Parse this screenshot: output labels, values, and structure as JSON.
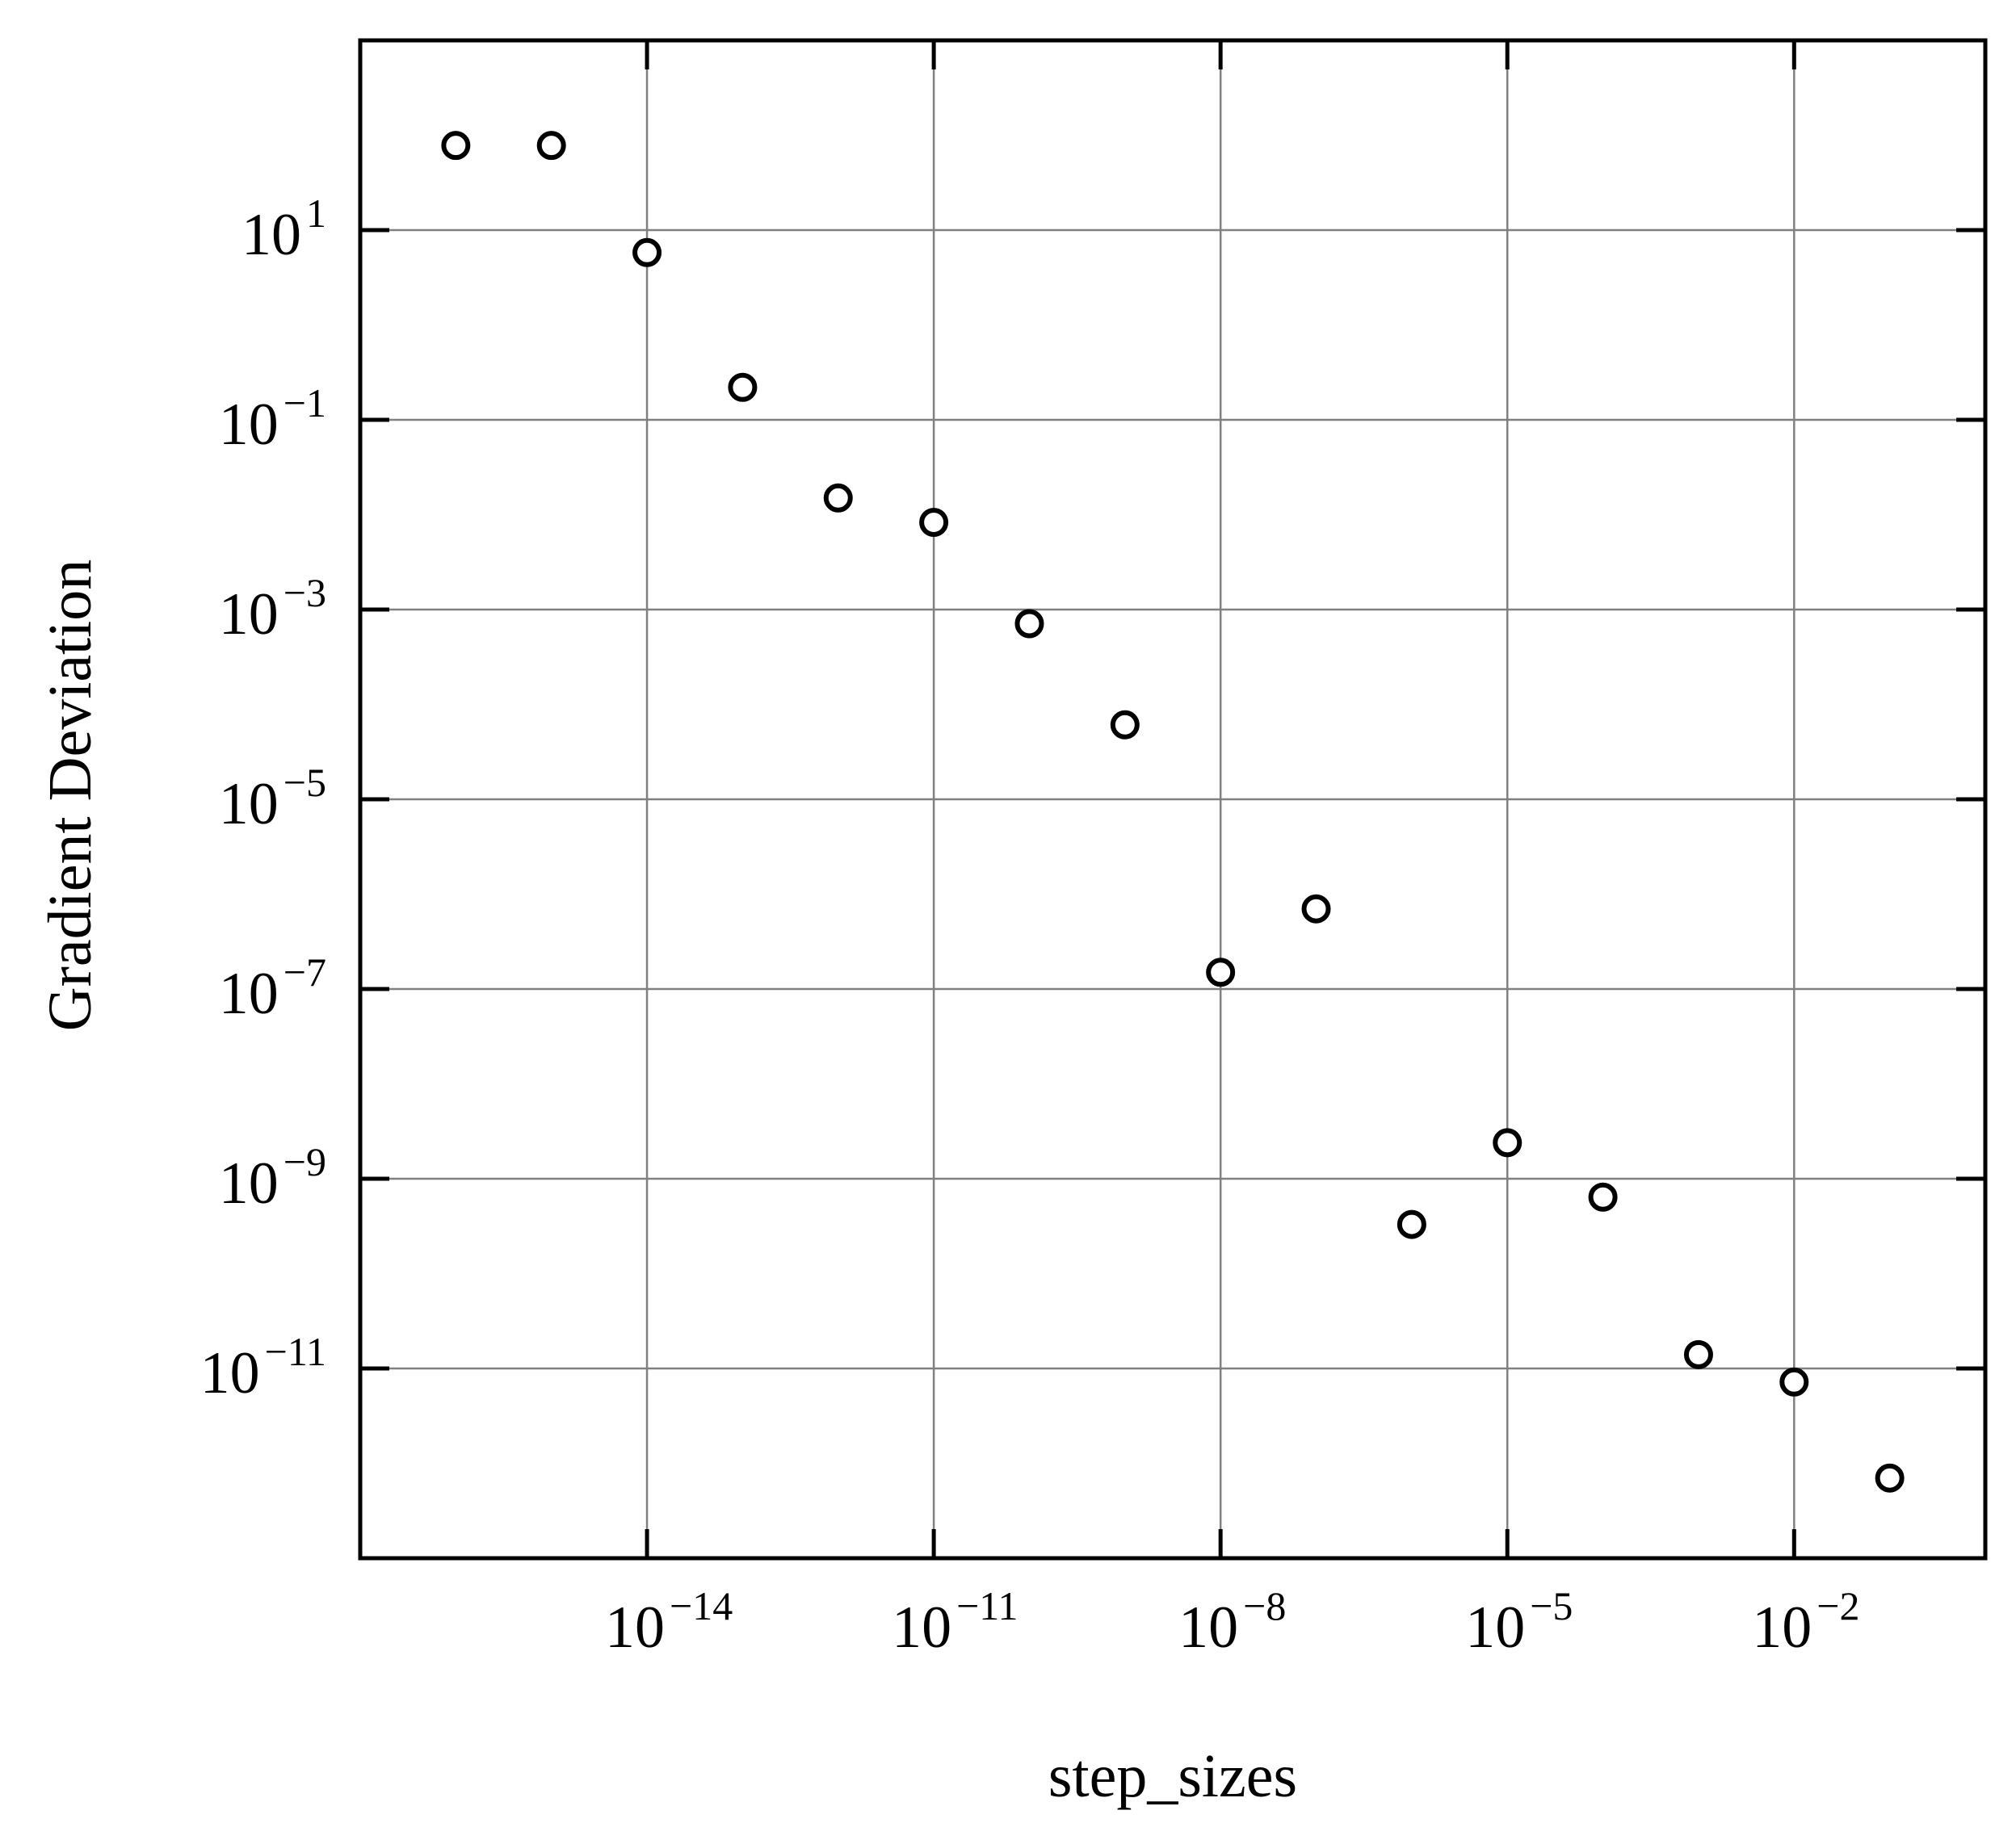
{
  "chart_data": {
    "type": "scatter",
    "title": "",
    "xlabel": "step_sizes",
    "ylabel": "Gradient Deviation",
    "xscale": "log",
    "yscale": "log",
    "xlim": [
      1e-17,
      1
    ],
    "ylim": [
      1e-13,
      1000.0
    ],
    "grid": true,
    "legend": "none",
    "marker": "open-circle",
    "marker_color": "#000000",
    "grid_color": "#808080",
    "x_ticks": [
      {
        "base": "10",
        "exp": "−14",
        "value": 1e-14
      },
      {
        "base": "10",
        "exp": "−11",
        "value": 1e-11
      },
      {
        "base": "10",
        "exp": "−8",
        "value": 1e-08
      },
      {
        "base": "10",
        "exp": "−5",
        "value": 1e-05
      },
      {
        "base": "10",
        "exp": "−2",
        "value": 0.01
      }
    ],
    "y_ticks": [
      {
        "base": "10",
        "exp": "1",
        "value": 10
      },
      {
        "base": "10",
        "exp": "−1",
        "value": 0.1
      },
      {
        "base": "10",
        "exp": "−3",
        "value": 0.001
      },
      {
        "base": "10",
        "exp": "−5",
        "value": 1e-05
      },
      {
        "base": "10",
        "exp": "−7",
        "value": 1e-07
      },
      {
        "base": "10",
        "exp": "−9",
        "value": 1e-09
      },
      {
        "base": "10",
        "exp": "−11",
        "value": 1e-11
      }
    ],
    "points": [
      {
        "x": 1e-16,
        "y": 78
      },
      {
        "x": 1e-15,
        "y": 78
      },
      {
        "x": 1e-14,
        "y": 5.8
      },
      {
        "x": 1e-13,
        "y": 0.22
      },
      {
        "x": 1e-12,
        "y": 0.015
      },
      {
        "x": 1e-11,
        "y": 0.0083
      },
      {
        "x": 1e-10,
        "y": 0.00071
      },
      {
        "x": 1e-09,
        "y": 6.1e-05
      },
      {
        "x": 1e-08,
        "y": 1.5e-07
      },
      {
        "x": 1e-07,
        "y": 7e-07
      },
      {
        "x": 1e-06,
        "y": 3.3e-10
      },
      {
        "x": 1e-05,
        "y": 2.4e-09
      },
      {
        "x": 0.0001,
        "y": 6.4e-10
      },
      {
        "x": 0.001,
        "y": 1.4e-11
      },
      {
        "x": 0.01,
        "y": 7.2e-12
      },
      {
        "x": 0.1,
        "y": 7e-13
      }
    ]
  }
}
